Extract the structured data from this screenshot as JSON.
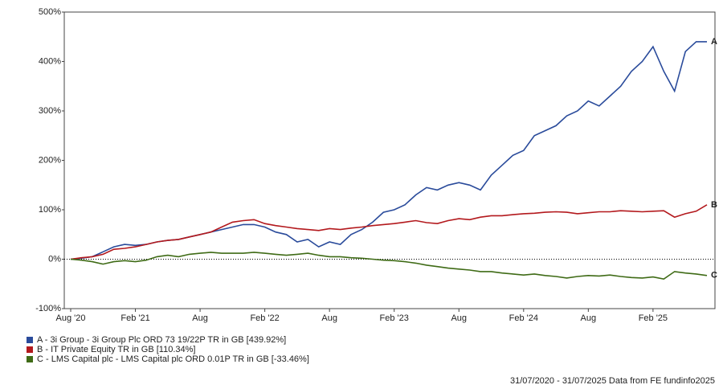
{
  "chart_data": {
    "type": "line",
    "categories": [
      "Aug '20",
      null,
      null,
      null,
      null,
      null,
      "Feb '21",
      null,
      null,
      null,
      null,
      null,
      "Aug",
      null,
      null,
      null,
      null,
      null,
      "Feb '22",
      null,
      null,
      null,
      null,
      null,
      "Aug",
      null,
      null,
      null,
      null,
      null,
      "Feb '23",
      null,
      null,
      null,
      null,
      null,
      "Aug",
      null,
      null,
      null,
      null,
      null,
      "Feb '24",
      null,
      null,
      null,
      null,
      null,
      "Aug",
      null,
      null,
      null,
      null,
      null,
      "Feb '25",
      null,
      null,
      null,
      null,
      null
    ],
    "series": [
      {
        "name": "A - 3i Group - 3i Group Plc ORD 73 19/22P TR in GB [439.92%]",
        "label": "A",
        "color": "#2a4b9b",
        "values": [
          0,
          2,
          5,
          15,
          25,
          30,
          28,
          30,
          35,
          38,
          40,
          45,
          50,
          55,
          60,
          65,
          70,
          70,
          65,
          55,
          50,
          35,
          40,
          25,
          35,
          30,
          50,
          60,
          75,
          95,
          100,
          110,
          130,
          145,
          140,
          150,
          155,
          150,
          140,
          170,
          190,
          210,
          220,
          250,
          260,
          270,
          290,
          300,
          320,
          310,
          330,
          350,
          380,
          400,
          430,
          380,
          340,
          420,
          440,
          440
        ]
      },
      {
        "name": "B - IT Private Equity TR in GB [110.34%]",
        "label": "B",
        "color": "#b3191d",
        "values": [
          0,
          3,
          5,
          10,
          20,
          22,
          25,
          30,
          35,
          38,
          40,
          45,
          50,
          55,
          65,
          75,
          78,
          80,
          72,
          68,
          65,
          62,
          60,
          58,
          62,
          60,
          63,
          65,
          68,
          70,
          72,
          75,
          78,
          74,
          72,
          78,
          82,
          80,
          85,
          88,
          88,
          90,
          92,
          93,
          95,
          96,
          95,
          92,
          94,
          96,
          96,
          98,
          97,
          96,
          97,
          98,
          85,
          92,
          97,
          110
        ]
      },
      {
        "name": "C - LMS Capital plc - LMS Capital plc ORD 0.01P TR in GB [-33.46%]",
        "label": "C",
        "color": "#3f6b16",
        "values": [
          0,
          -2,
          -5,
          -10,
          -5,
          -3,
          -5,
          -2,
          5,
          8,
          5,
          10,
          12,
          14,
          12,
          12,
          12,
          14,
          12,
          10,
          8,
          10,
          12,
          8,
          5,
          5,
          3,
          2,
          0,
          -2,
          -3,
          -5,
          -8,
          -12,
          -15,
          -18,
          -20,
          -22,
          -25,
          -25,
          -28,
          -30,
          -32,
          -30,
          -33,
          -35,
          -38,
          -35,
          -33,
          -34,
          -32,
          -35,
          -37,
          -38,
          -36,
          -40,
          -25,
          -28,
          -30,
          -33
        ]
      }
    ],
    "ylim": [
      -100,
      500
    ],
    "yticks": [
      {
        "value": -100,
        "label": "-100%"
      },
      {
        "value": 0,
        "label": "0%"
      },
      {
        "value": 100,
        "label": "100%"
      },
      {
        "value": 200,
        "label": "200%"
      },
      {
        "value": 300,
        "label": "300%"
      },
      {
        "value": 400,
        "label": "400%"
      },
      {
        "value": 500,
        "label": "500%"
      }
    ],
    "footer": "31/07/2020 - 31/07/2025 Data from FE fundinfo2025"
  }
}
